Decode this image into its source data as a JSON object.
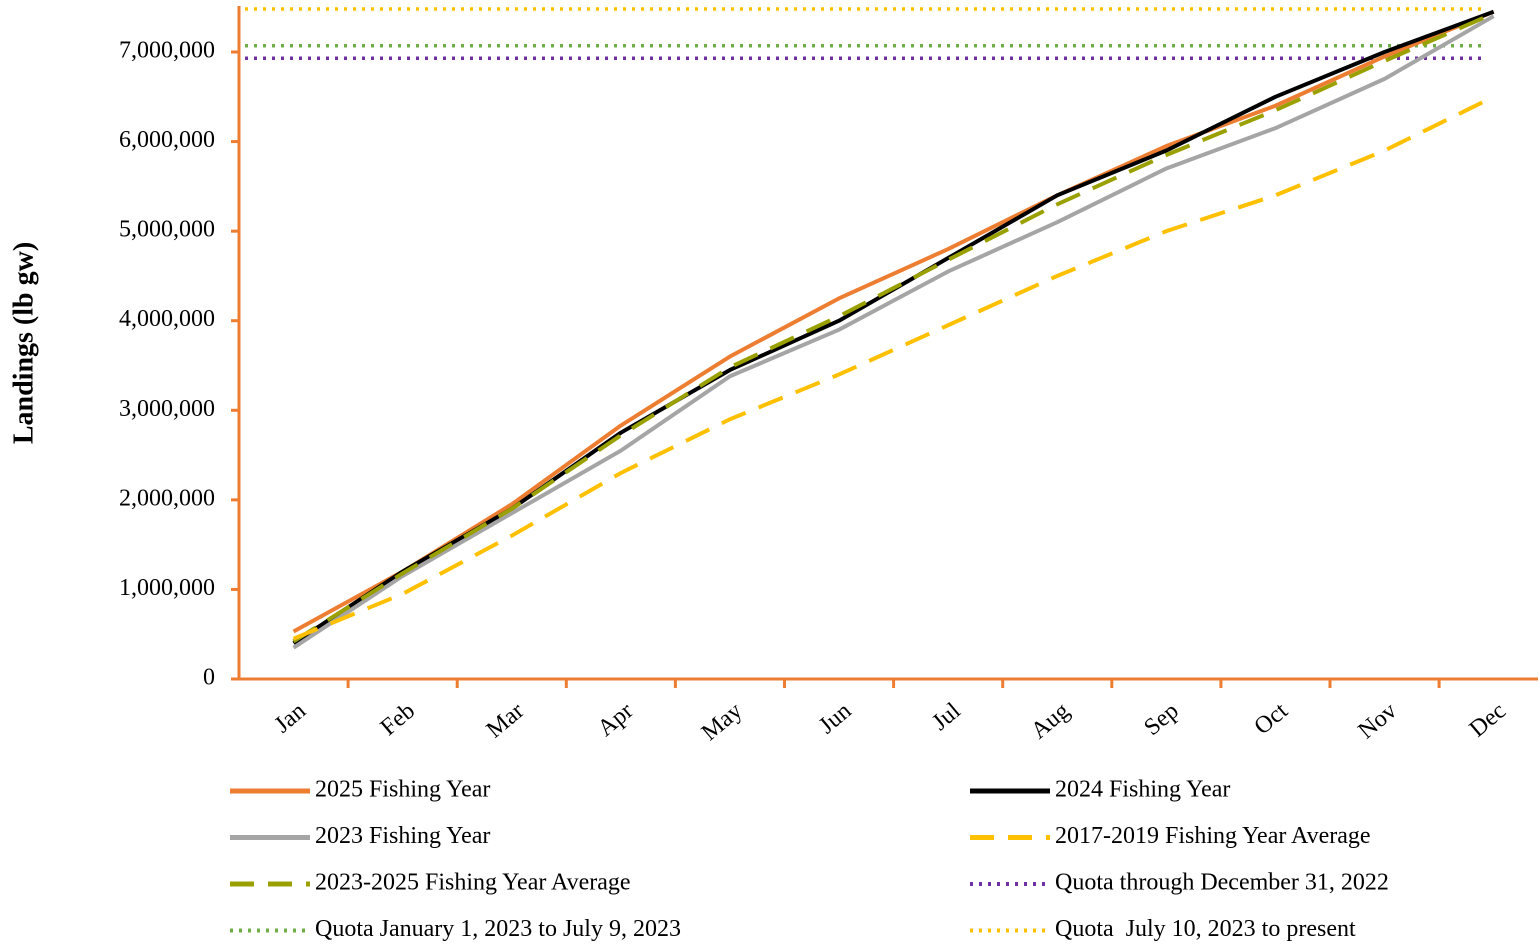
{
  "chart_data": {
    "type": "line",
    "y_label": "Landings (lb gw)",
    "categories": [
      "Jan",
      "Feb",
      "Mar",
      "Apr",
      "May",
      "Jun",
      "Jul",
      "Aug",
      "Sep",
      "Oct",
      "Nov",
      "Dec"
    ],
    "series": [
      {
        "name": "2025 Fishing Year",
        "color": "#ed7d31",
        "style": "solid",
        "values": [
          530000,
          1200000,
          1950000,
          2830000,
          3600000,
          4250000,
          4800000,
          5400000,
          5950000,
          6400000,
          6950000,
          7450000
        ]
      },
      {
        "name": "2024 Fishing Year",
        "color": "#000000",
        "style": "solid",
        "values": [
          400000,
          1200000,
          1900000,
          2750000,
          3450000,
          4000000,
          4700000,
          5400000,
          5900000,
          6500000,
          7000000,
          7450000
        ]
      },
      {
        "name": "2023 Fishing Year",
        "color": "#a5a5a5",
        "style": "solid",
        "values": [
          350000,
          1150000,
          1850000,
          2550000,
          3380000,
          3900000,
          4550000,
          5100000,
          5700000,
          6150000,
          6700000,
          7400000
        ]
      },
      {
        "name": "2017-2019 Fishing Year Average",
        "color": "#ffc000",
        "style": "dashed",
        "values": [
          450000,
          950000,
          1600000,
          2300000,
          2900000,
          3400000,
          3950000,
          4500000,
          5000000,
          5400000,
          5900000,
          6500000
        ]
      },
      {
        "name": "2023-2025 Fishing Year Average",
        "color": "#9aa000",
        "style": "dashed",
        "values": [
          420000,
          1180000,
          1900000,
          2720000,
          3480000,
          4050000,
          4680000,
          5300000,
          5850000,
          6350000,
          6900000,
          7430000
        ]
      }
    ],
    "quotas": [
      {
        "name": "Quota through December 31, 2022",
        "color": "#7030a0",
        "style": "dotted",
        "value": 6930000
      },
      {
        "name": "Quota January 1, 2023 to July 9, 2023",
        "color": "#70ad47",
        "style": "dotted",
        "value": 7070000
      },
      {
        "name": "Quota  July 10, 2023 to present",
        "color": "#ffc000",
        "style": "dotted",
        "value": 7480000
      }
    ],
    "ylim": [
      0,
      7500000
    ],
    "yticks": [
      0,
      {
        "value": 1000000,
        "label": "1,000,000"
      },
      {
        "value": 2000000,
        "label": "2,000,000"
      },
      {
        "value": 3000000,
        "label": "3,000,000"
      },
      {
        "value": 4000000,
        "label": "4,000,000"
      },
      {
        "value": 5000000,
        "label": "5,000,000"
      },
      {
        "value": 6000000,
        "label": "6,000,000"
      },
      {
        "value": 7000000,
        "label": "7,000,000"
      }
    ],
    "axis_color": "#ed7d31"
  }
}
